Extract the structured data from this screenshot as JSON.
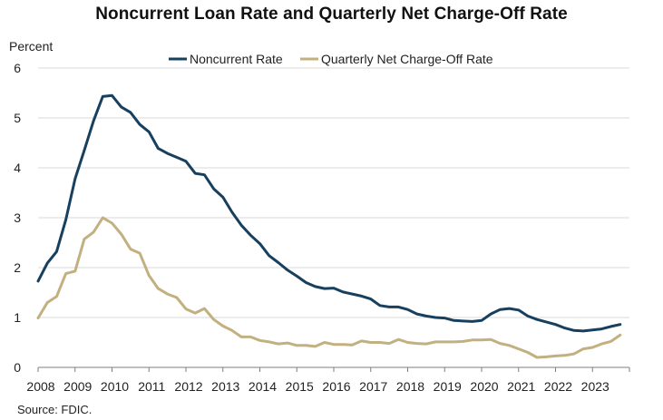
{
  "chart_data": {
    "type": "line",
    "title": "Noncurrent Loan Rate and Quarterly Net Charge-Off Rate",
    "ylabel": "Percent",
    "xlabel": "",
    "source": "Source: FDIC.",
    "ylim": [
      0,
      6
    ],
    "xlim": [
      2008.0,
      2024.0
    ],
    "yticks": [
      "0",
      "1",
      "2",
      "3",
      "4",
      "5",
      "6"
    ],
    "xticks": [
      "2008",
      "2009",
      "2010",
      "2011",
      "2012",
      "2013",
      "2014",
      "2015",
      "2016",
      "2017",
      "2018",
      "2019",
      "2020",
      "2021",
      "2022",
      "2023"
    ],
    "grid": true,
    "legend": "top-center",
    "series": [
      {
        "name": "Noncurrent Rate",
        "color": "#17405f",
        "x": [
          2008.0,
          2008.25,
          2008.5,
          2008.75,
          2009.0,
          2009.25,
          2009.5,
          2009.75,
          2010.0,
          2010.25,
          2010.5,
          2010.75,
          2011.0,
          2011.25,
          2011.5,
          2011.75,
          2012.0,
          2012.25,
          2012.5,
          2012.75,
          2013.0,
          2013.25,
          2013.5,
          2013.75,
          2014.0,
          2014.25,
          2014.5,
          2014.75,
          2015.0,
          2015.25,
          2015.5,
          2015.75,
          2016.0,
          2016.25,
          2016.5,
          2016.75,
          2017.0,
          2017.25,
          2017.5,
          2017.75,
          2018.0,
          2018.25,
          2018.5,
          2018.75,
          2019.0,
          2019.25,
          2019.5,
          2019.75,
          2020.0,
          2020.25,
          2020.5,
          2020.75,
          2021.0,
          2021.25,
          2021.5,
          2021.75,
          2022.0,
          2022.25,
          2022.5,
          2022.75,
          2023.0,
          2023.25,
          2023.5,
          2023.75
        ],
        "values": [
          1.73,
          2.09,
          2.32,
          2.96,
          3.78,
          4.35,
          4.94,
          5.43,
          5.45,
          5.22,
          5.11,
          4.87,
          4.72,
          4.39,
          4.29,
          4.21,
          4.13,
          3.89,
          3.86,
          3.58,
          3.41,
          3.11,
          2.85,
          2.65,
          2.48,
          2.24,
          2.1,
          1.95,
          1.83,
          1.7,
          1.62,
          1.58,
          1.59,
          1.51,
          1.47,
          1.43,
          1.37,
          1.24,
          1.21,
          1.21,
          1.16,
          1.07,
          1.03,
          1.0,
          0.99,
          0.94,
          0.93,
          0.92,
          0.94,
          1.07,
          1.16,
          1.18,
          1.15,
          1.03,
          0.96,
          0.91,
          0.86,
          0.79,
          0.74,
          0.73,
          0.75,
          0.77,
          0.82,
          0.86
        ]
      },
      {
        "name": "Quarterly Net Charge-Off Rate",
        "color": "#c2b080",
        "x": [
          2008.0,
          2008.25,
          2008.5,
          2008.75,
          2009.0,
          2009.25,
          2009.5,
          2009.75,
          2010.0,
          2010.25,
          2010.5,
          2010.75,
          2011.0,
          2011.25,
          2011.5,
          2011.75,
          2012.0,
          2012.25,
          2012.5,
          2012.75,
          2013.0,
          2013.25,
          2013.5,
          2013.75,
          2014.0,
          2014.25,
          2014.5,
          2014.75,
          2015.0,
          2015.25,
          2015.5,
          2015.75,
          2016.0,
          2016.25,
          2016.5,
          2016.75,
          2017.0,
          2017.25,
          2017.5,
          2017.75,
          2018.0,
          2018.25,
          2018.5,
          2018.75,
          2019.0,
          2019.25,
          2019.5,
          2019.75,
          2020.0,
          2020.25,
          2020.5,
          2020.75,
          2021.0,
          2021.25,
          2021.5,
          2021.75,
          2022.0,
          2022.25,
          2022.5,
          2022.75,
          2023.0,
          2023.25,
          2023.5,
          2023.75
        ],
        "values": [
          0.99,
          1.3,
          1.42,
          1.88,
          1.93,
          2.57,
          2.71,
          3.0,
          2.89,
          2.67,
          2.37,
          2.29,
          1.84,
          1.58,
          1.47,
          1.4,
          1.17,
          1.09,
          1.18,
          0.96,
          0.83,
          0.74,
          0.61,
          0.61,
          0.54,
          0.51,
          0.47,
          0.49,
          0.44,
          0.44,
          0.42,
          0.5,
          0.46,
          0.46,
          0.45,
          0.53,
          0.5,
          0.5,
          0.48,
          0.56,
          0.5,
          0.48,
          0.47,
          0.51,
          0.51,
          0.51,
          0.52,
          0.55,
          0.55,
          0.56,
          0.48,
          0.44,
          0.37,
          0.3,
          0.2,
          0.21,
          0.23,
          0.24,
          0.27,
          0.37,
          0.4,
          0.47,
          0.52,
          0.65
        ]
      }
    ]
  }
}
